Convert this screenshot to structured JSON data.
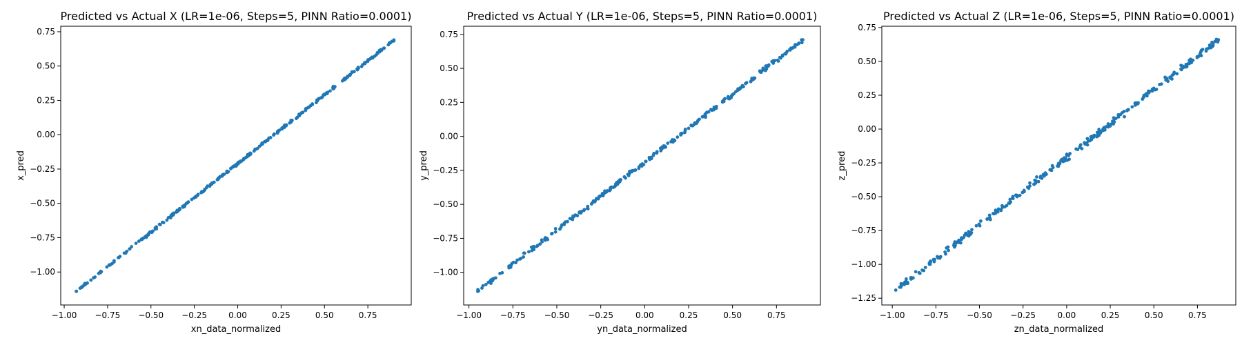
{
  "chart_data": [
    {
      "type": "scatter",
      "title": "Predicted vs Actual X (LR=1e-06, Steps=5, PINN Ratio=0.0001)",
      "xlabel": "xn_data_normalized",
      "ylabel": "x_pred",
      "xlim": [
        -1.02,
        1.0
      ],
      "ylim": [
        -1.24,
        0.79
      ],
      "xticks": [
        -1.0,
        -0.75,
        -0.5,
        -0.25,
        0.0,
        0.25,
        0.5,
        0.75
      ],
      "yticks": [
        -1.0,
        -0.75,
        -0.5,
        -0.25,
        0.0,
        0.25,
        0.5,
        0.75
      ],
      "color": "#1f77b4",
      "fit": {
        "slope": 1.0,
        "intercept": -0.21,
        "xmin": -0.93,
        "xmax": 0.9,
        "noise": 0.008,
        "n": 300
      },
      "grid": false
    },
    {
      "type": "scatter",
      "title": "Predicted vs Actual Y (LR=1e-06, Steps=5, PINN Ratio=0.0001)",
      "xlabel": "yn_data_normalized",
      "ylabel": "y_pred",
      "xlim": [
        -1.03,
        1.0
      ],
      "ylim": [
        -1.24,
        0.81
      ],
      "xticks": [
        -1.0,
        -0.75,
        -0.5,
        -0.25,
        0.0,
        0.25,
        0.5,
        0.75
      ],
      "yticks": [
        -1.0,
        -0.75,
        -0.5,
        -0.25,
        0.0,
        0.25,
        0.5,
        0.75
      ],
      "color": "#1f77b4",
      "fit": {
        "slope": 1.0,
        "intercept": -0.19,
        "xmin": -0.95,
        "xmax": 0.9,
        "noise": 0.014,
        "n": 300
      },
      "grid": false
    },
    {
      "type": "scatter",
      "title": "Predicted vs Actual Z (LR=1e-06, Steps=5, PINN Ratio=0.0001)",
      "xlabel": "zn_data_normalized",
      "ylabel": "z_pred",
      "xlim": [
        -1.06,
        0.97
      ],
      "ylim": [
        -1.3,
        0.76
      ],
      "xticks": [
        -1.0,
        -0.75,
        -0.5,
        -0.25,
        0.0,
        0.25,
        0.5,
        0.75
      ],
      "yticks": [
        -1.25,
        -1.0,
        -0.75,
        -0.5,
        -0.25,
        0.0,
        0.25,
        0.5,
        0.75
      ],
      "color": "#1f77b4",
      "fit": {
        "slope": 1.0,
        "intercept": -0.21,
        "xmin": -0.98,
        "xmax": 0.87,
        "noise": 0.022,
        "n": 300
      },
      "grid": false
    }
  ]
}
